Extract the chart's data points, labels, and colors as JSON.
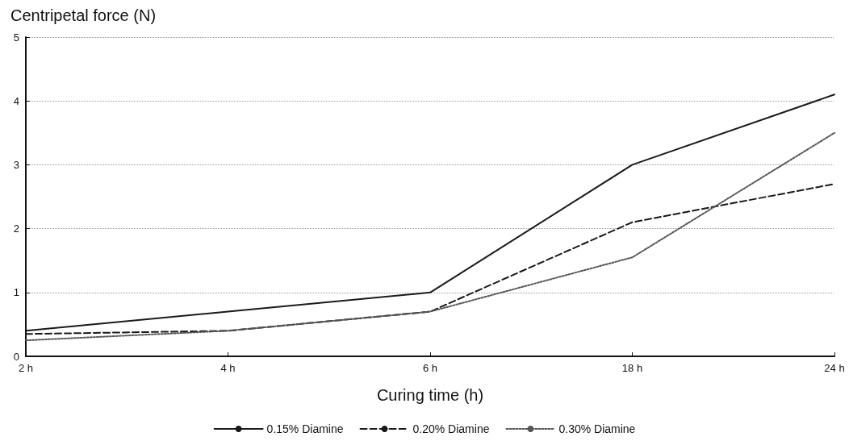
{
  "chart_data": {
    "type": "line",
    "ylabel": "Centripetal force (N)",
    "xlabel": "Curing time (h)",
    "categories": [
      "2 h",
      "4 h",
      "6 h",
      "18 h",
      "24 h"
    ],
    "series": [
      {
        "name": "0.15% Diamine",
        "color": "#1a1a1a",
        "line_style": "solid",
        "values": [
          0.4,
          0.7,
          1.0,
          3.0,
          4.1
        ]
      },
      {
        "name": "0.20% Diamine",
        "color": "#1a1a1a",
        "line_style": "dashed",
        "values": [
          0.35,
          0.4,
          0.7,
          2.1,
          2.7
        ]
      },
      {
        "name": "0.30% Diamine",
        "color": "#555555",
        "line_style": "dotted",
        "values": [
          0.25,
          0.4,
          0.7,
          1.55,
          3.5
        ]
      }
    ],
    "ylim": [
      0,
      5
    ],
    "yticks": [
      0,
      1,
      2,
      3,
      4,
      5
    ],
    "grid": "y",
    "legend": "bottom",
    "marker": "none"
  }
}
